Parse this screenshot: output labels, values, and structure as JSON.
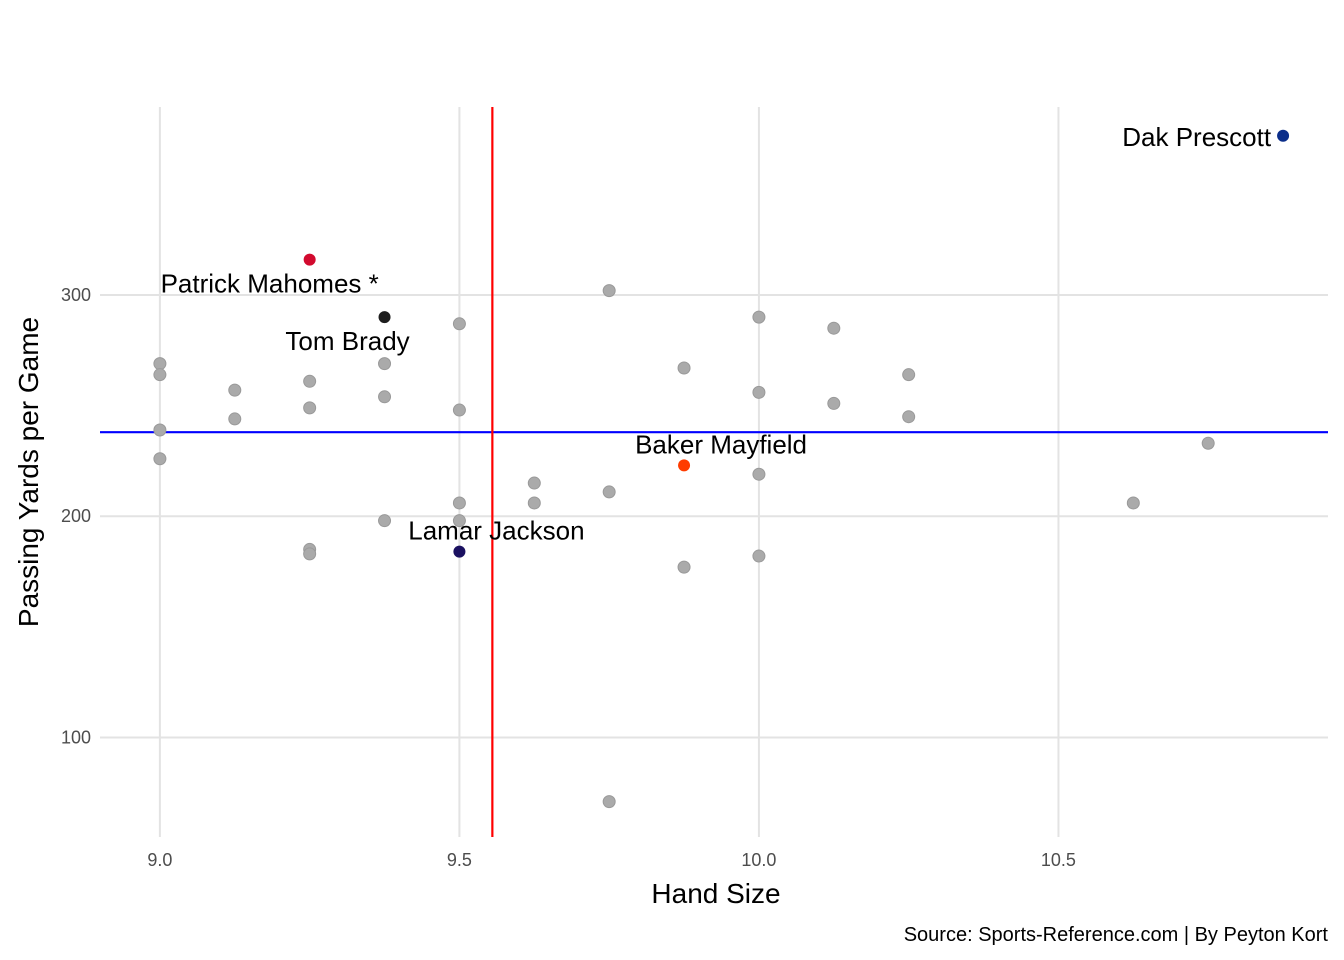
{
  "chart_data": {
    "type": "scatter",
    "title": "",
    "xlabel": "Hand Size",
    "ylabel": "Passing Yards per Game",
    "caption": "Source: Sports-Reference.com | By Peyton Kort",
    "xlim": [
      8.9,
      10.95
    ],
    "ylim": [
      55,
      385
    ],
    "x_ticks": [
      9.0,
      9.5,
      10.0,
      10.5
    ],
    "x_tick_labels": [
      "9.0",
      "9.5",
      "10.0",
      "10.5"
    ],
    "y_ticks": [
      100,
      200,
      300
    ],
    "y_tick_labels": [
      "100",
      "200",
      "300"
    ],
    "grid": true,
    "reference_lines": {
      "vertical_x": 9.555,
      "vertical_color": "#ff0000",
      "horizontal_y": 238,
      "horizontal_color": "#0000ff"
    },
    "colors": {
      "default_point": "#aaaaaa",
      "default_point_stroke": "#999999"
    },
    "points": [
      {
        "x": 9.0,
        "y": 269
      },
      {
        "x": 9.0,
        "y": 264
      },
      {
        "x": 9.0,
        "y": 239
      },
      {
        "x": 9.0,
        "y": 226
      },
      {
        "x": 9.125,
        "y": 257
      },
      {
        "x": 9.125,
        "y": 244
      },
      {
        "x": 9.25,
        "y": 261
      },
      {
        "x": 9.25,
        "y": 249
      },
      {
        "x": 9.25,
        "y": 185
      },
      {
        "x": 9.25,
        "y": 183
      },
      {
        "x": 9.375,
        "y": 269
      },
      {
        "x": 9.375,
        "y": 254
      },
      {
        "x": 9.375,
        "y": 198
      },
      {
        "x": 9.5,
        "y": 287
      },
      {
        "x": 9.5,
        "y": 248
      },
      {
        "x": 9.5,
        "y": 206
      },
      {
        "x": 9.5,
        "y": 198
      },
      {
        "x": 9.625,
        "y": 215
      },
      {
        "x": 9.625,
        "y": 206
      },
      {
        "x": 9.75,
        "y": 302
      },
      {
        "x": 9.75,
        "y": 211
      },
      {
        "x": 9.75,
        "y": 71
      },
      {
        "x": 9.875,
        "y": 267
      },
      {
        "x": 9.875,
        "y": 177
      },
      {
        "x": 10.0,
        "y": 290
      },
      {
        "x": 10.0,
        "y": 256
      },
      {
        "x": 10.0,
        "y": 219
      },
      {
        "x": 10.0,
        "y": 182
      },
      {
        "x": 10.125,
        "y": 285
      },
      {
        "x": 10.125,
        "y": 251
      },
      {
        "x": 10.25,
        "y": 264
      },
      {
        "x": 10.25,
        "y": 245
      },
      {
        "x": 10.625,
        "y": 206
      },
      {
        "x": 10.75,
        "y": 233
      }
    ],
    "highlighted": [
      {
        "name": "Dak Prescott",
        "x": 10.875,
        "y": 372,
        "color": "#0b2e8a",
        "anchor": "end",
        "dx": -12,
        "dy": 10
      },
      {
        "name": "Patrick Mahomes *",
        "x": 9.25,
        "y": 316,
        "color": "#d20a2e",
        "anchor": "middle",
        "dx": -40,
        "dy": 33
      },
      {
        "name": "Tom Brady",
        "x": 9.375,
        "y": 290,
        "color": "#1e1e1e",
        "anchor": "middle",
        "dx": -37,
        "dy": 33
      },
      {
        "name": "Baker Mayfield",
        "x": 9.875,
        "y": 223,
        "color": "#ff3c00",
        "anchor": "middle",
        "dx": 37,
        "dy": -12
      },
      {
        "name": "Lamar Jackson",
        "x": 9.5,
        "y": 184,
        "color": "#1a1060",
        "anchor": "middle",
        "dx": 37,
        "dy": -12
      }
    ]
  }
}
